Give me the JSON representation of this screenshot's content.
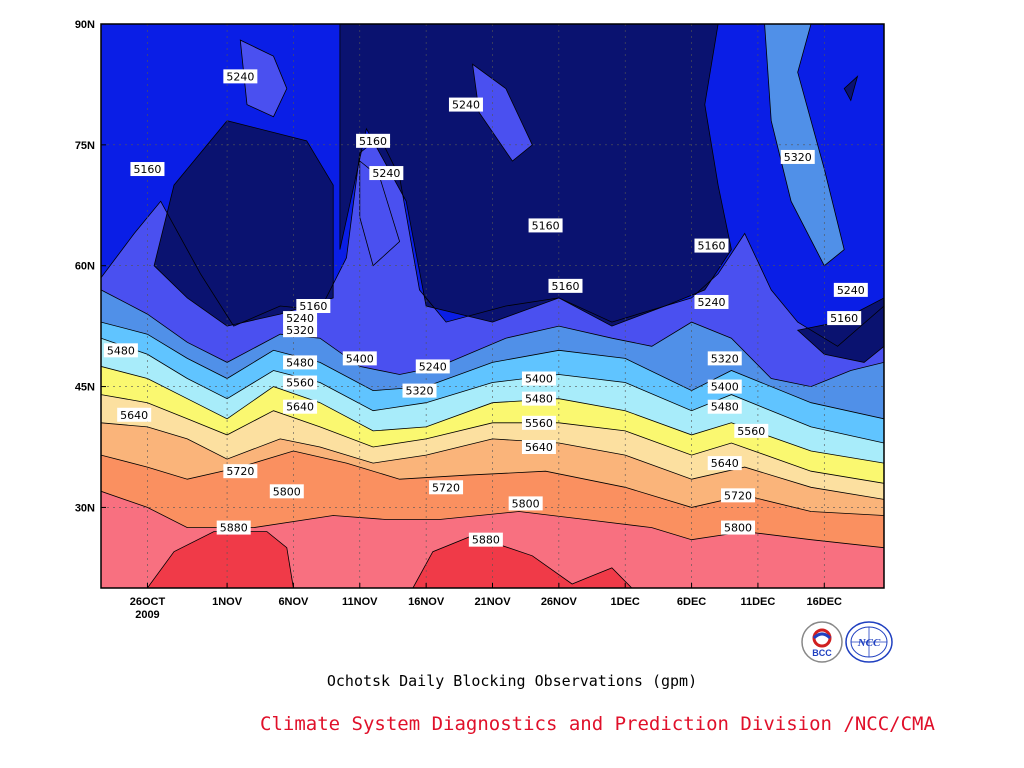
{
  "chart_data": {
    "type": "heatmap",
    "title": "",
    "subtitle": "Ochotsk Daily Blocking Observations (gpm)",
    "x_ticks": [
      {
        "label": "26OCT",
        "sub": "2009",
        "day": 0
      },
      {
        "label": "1NOV",
        "day": 6
      },
      {
        "label": "6NOV",
        "day": 11
      },
      {
        "label": "11NOV",
        "day": 16
      },
      {
        "label": "16NOV",
        "day": 21
      },
      {
        "label": "21NOV",
        "day": 26
      },
      {
        "label": "26NOV",
        "day": 31
      },
      {
        "label": "1DEC",
        "day": 36
      },
      {
        "label": "6DEC",
        "day": 41
      },
      {
        "label": "11DEC",
        "day": 46
      },
      {
        "label": "16DEC",
        "day": 51
      }
    ],
    "y_ticks": [
      {
        "label": "30N",
        "lat": 30
      },
      {
        "label": "45N",
        "lat": 45
      },
      {
        "label": "60N",
        "lat": 60
      },
      {
        "label": "75N",
        "lat": 75
      },
      {
        "label": "90N",
        "lat": 90
      }
    ],
    "xlim": [
      -3.5,
      55.5
    ],
    "ylim": [
      20,
      90
    ],
    "grid": true,
    "levels": [
      5160,
      5240,
      5320,
      5400,
      5480,
      5560,
      5640,
      5720,
      5800,
      5880
    ],
    "colors": [
      "#0a1270",
      "#0a1ee6",
      "#4a50f0",
      "#5090e8",
      "#60c4ff",
      "#a8ecfa",
      "#faf870",
      "#fce0a0",
      "#fab47a",
      "#fa9060",
      "#f86c40",
      "#f87080",
      "#f03a48"
    ],
    "contours": [
      {
        "level": 5880,
        "points": [
          [
            -3.5,
            20.5
          ],
          [
            55.5,
            20.5
          ]
        ]
      },
      {
        "level": 5800,
        "points": [
          [
            -3.5,
            32
          ],
          [
            0,
            30
          ],
          [
            3,
            27.5
          ],
          [
            8,
            27.5
          ],
          [
            14,
            29
          ],
          [
            18,
            28.5
          ],
          [
            22,
            28.5
          ],
          [
            28,
            29.5
          ],
          [
            33,
            28.5
          ],
          [
            38,
            27.5
          ],
          [
            41,
            26
          ],
          [
            45,
            27
          ],
          [
            50,
            26
          ],
          [
            55.5,
            25
          ]
        ]
      },
      {
        "level": 5720,
        "points": [
          [
            -3.5,
            36.5
          ],
          [
            0,
            35
          ],
          [
            3,
            33.5
          ],
          [
            7,
            35
          ],
          [
            11,
            37
          ],
          [
            15,
            35.5
          ],
          [
            19,
            33.5
          ],
          [
            24,
            34
          ],
          [
            30,
            34.5
          ],
          [
            36,
            32.5
          ],
          [
            41,
            30
          ],
          [
            45,
            31.5
          ],
          [
            50,
            29.5
          ],
          [
            55.5,
            29
          ]
        ]
      },
      {
        "level": 5640,
        "points": [
          [
            -3.5,
            40.5
          ],
          [
            0,
            40
          ],
          [
            3,
            38.5
          ],
          [
            6,
            36
          ],
          [
            10,
            38.5
          ],
          [
            13,
            37.5
          ],
          [
            17,
            35.5
          ],
          [
            21,
            36.5
          ],
          [
            26,
            38.5
          ],
          [
            31,
            38
          ],
          [
            36,
            36.5
          ],
          [
            41,
            33.5
          ],
          [
            45,
            35
          ],
          [
            50,
            32.5
          ],
          [
            55.5,
            31
          ]
        ]
      },
      {
        "level": 5560,
        "points": [
          [
            -3.5,
            44
          ],
          [
            0,
            43
          ],
          [
            3,
            41
          ],
          [
            6,
            39
          ],
          [
            9.5,
            42
          ],
          [
            13,
            40
          ],
          [
            17,
            37.5
          ],
          [
            21,
            38.5
          ],
          [
            26,
            40.5
          ],
          [
            31,
            40.5
          ],
          [
            36,
            39.5
          ],
          [
            41,
            36.5
          ],
          [
            44,
            38
          ],
          [
            50,
            34.5
          ],
          [
            55.5,
            33
          ]
        ]
      },
      {
        "level": 5480,
        "points": [
          [
            -3.5,
            47.5
          ],
          [
            0,
            46
          ],
          [
            3,
            43.5
          ],
          [
            6,
            41
          ],
          [
            9.5,
            45
          ],
          [
            13,
            43
          ],
          [
            17,
            39.5
          ],
          [
            21,
            40
          ],
          [
            26,
            43
          ],
          [
            31,
            43.5
          ],
          [
            36,
            42
          ],
          [
            41,
            39
          ],
          [
            44,
            40.5
          ],
          [
            50,
            37
          ],
          [
            55.5,
            35.5
          ]
        ]
      },
      {
        "level": 5400,
        "points": [
          [
            -3.5,
            51
          ],
          [
            0,
            49
          ],
          [
            3,
            46
          ],
          [
            6,
            43.5
          ],
          [
            9.5,
            47
          ],
          [
            13,
            45.5
          ],
          [
            17,
            42
          ],
          [
            21,
            43
          ],
          [
            26,
            45.5
          ],
          [
            31,
            46.5
          ],
          [
            36,
            45.5
          ],
          [
            41,
            42
          ],
          [
            44,
            44
          ],
          [
            50,
            40
          ],
          [
            55.5,
            38
          ]
        ]
      },
      {
        "level": 5320,
        "points": [
          [
            -3.5,
            53
          ],
          [
            0,
            51.5
          ],
          [
            3,
            48.5
          ],
          [
            6,
            46
          ],
          [
            9.5,
            49.5
          ],
          [
            13,
            48
          ],
          [
            17,
            44.5
          ],
          [
            21,
            45
          ],
          [
            26,
            48
          ],
          [
            31,
            49.5
          ],
          [
            36,
            48.5
          ],
          [
            41,
            44.5
          ],
          [
            44,
            47
          ],
          [
            50,
            43
          ],
          [
            55.5,
            41
          ]
        ]
      },
      {
        "level": 5240,
        "points": [
          [
            -3.5,
            57
          ],
          [
            0,
            54
          ],
          [
            3,
            50.5
          ],
          [
            6,
            48
          ],
          [
            10,
            51.5
          ],
          [
            13,
            51
          ],
          [
            16,
            47.5
          ],
          [
            19,
            46.5
          ],
          [
            22,
            47.5
          ],
          [
            27,
            51
          ],
          [
            31,
            52.5
          ],
          [
            35,
            51
          ],
          [
            38,
            50
          ],
          [
            41,
            53
          ],
          [
            44,
            51
          ],
          [
            47,
            46
          ],
          [
            50,
            45
          ],
          [
            53,
            47
          ],
          [
            55.5,
            48
          ]
        ]
      },
      {
        "level": 5160,
        "points": [
          [
            -3.5,
            58.5
          ],
          [
            -1,
            64
          ],
          [
            1,
            68
          ],
          [
            4,
            59
          ],
          [
            6.5,
            52.5
          ],
          [
            10,
            55
          ],
          [
            13,
            54.5
          ],
          [
            15,
            61
          ],
          [
            16,
            74
          ],
          [
            17.5,
            76
          ],
          [
            19,
            71
          ],
          [
            20.5,
            57
          ],
          [
            22.5,
            53
          ],
          [
            27,
            55
          ],
          [
            31,
            56
          ],
          [
            35,
            53
          ],
          [
            39,
            55
          ],
          [
            41,
            56
          ],
          [
            43,
            59
          ],
          [
            45,
            64
          ],
          [
            47,
            57
          ],
          [
            49,
            53
          ],
          [
            52,
            50
          ],
          [
            55.5,
            55
          ]
        ]
      }
    ],
    "labels": [
      {
        "text": "5240",
        "day": 7,
        "lat": 83.5
      },
      {
        "text": "5160",
        "day": 0,
        "lat": 72
      },
      {
        "text": "5240",
        "day": 24,
        "lat": 80
      },
      {
        "text": "5160",
        "day": 17,
        "lat": 75.5
      },
      {
        "text": "5240",
        "day": 18,
        "lat": 71.5
      },
      {
        "text": "5160",
        "day": 30,
        "lat": 65
      },
      {
        "text": "5320",
        "day": 49,
        "lat": 73.5
      },
      {
        "text": "5160",
        "day": 31.5,
        "lat": 57.5
      },
      {
        "text": "5160",
        "day": 42.5,
        "lat": 62.5
      },
      {
        "text": "5240",
        "day": 53,
        "lat": 57
      },
      {
        "text": "5160",
        "day": 52.5,
        "lat": 53.5
      },
      {
        "text": "5160",
        "day": 12.5,
        "lat": 55
      },
      {
        "text": "5240",
        "day": 11.5,
        "lat": 53.5
      },
      {
        "text": "5320",
        "day": 11.5,
        "lat": 52
      },
      {
        "text": "5240",
        "day": 42.5,
        "lat": 55.5
      },
      {
        "text": "5480",
        "day": -2,
        "lat": 49.5
      },
      {
        "text": "5400",
        "day": 16,
        "lat": 48.5
      },
      {
        "text": "5480",
        "day": 11.5,
        "lat": 48
      },
      {
        "text": "5240",
        "day": 21.5,
        "lat": 47.5
      },
      {
        "text": "5320",
        "day": 43.5,
        "lat": 48.5
      },
      {
        "text": "5560",
        "day": 11.5,
        "lat": 45.5
      },
      {
        "text": "5400",
        "day": 29.5,
        "lat": 46
      },
      {
        "text": "5320",
        "day": 20.5,
        "lat": 44.5
      },
      {
        "text": "5400",
        "day": 43.5,
        "lat": 45
      },
      {
        "text": "5480",
        "day": 29.5,
        "lat": 43.5
      },
      {
        "text": "5640",
        "day": 11.5,
        "lat": 42.5
      },
      {
        "text": "5480",
        "day": 43.5,
        "lat": 42.5
      },
      {
        "text": "5640",
        "day": -1,
        "lat": 41.5
      },
      {
        "text": "5560",
        "day": 29.5,
        "lat": 40.5
      },
      {
        "text": "5560",
        "day": 45.5,
        "lat": 39.5
      },
      {
        "text": "5640",
        "day": 29.5,
        "lat": 37.5
      },
      {
        "text": "5720",
        "day": 7,
        "lat": 34.5
      },
      {
        "text": "5640",
        "day": 43.5,
        "lat": 35.5
      },
      {
        "text": "5720",
        "day": 22.5,
        "lat": 32.5
      },
      {
        "text": "5800",
        "day": 10.5,
        "lat": 32
      },
      {
        "text": "5720",
        "day": 44.5,
        "lat": 31.5
      },
      {
        "text": "5800",
        "day": 28.5,
        "lat": 30.5
      },
      {
        "text": "5800",
        "day": 44.5,
        "lat": 27.5
      },
      {
        "text": "5880",
        "day": 6.5,
        "lat": 27.5
      },
      {
        "text": "5880",
        "day": 25.5,
        "lat": 26
      }
    ],
    "islands": [
      {
        "level": "5880",
        "points": [
          [
            0,
            20
          ],
          [
            2,
            24.5
          ],
          [
            5,
            27
          ],
          [
            9,
            27
          ],
          [
            10.5,
            25
          ],
          [
            11,
            20
          ]
        ]
      },
      {
        "level": "5880",
        "points": [
          [
            20,
            20
          ],
          [
            21.5,
            24.5
          ],
          [
            24.5,
            26.5
          ],
          [
            29,
            24
          ],
          [
            32,
            20.5
          ],
          [
            33.5,
            21.5
          ],
          [
            35,
            22.5
          ],
          [
            36.5,
            20
          ]
        ]
      },
      {
        "level": "5160",
        "points": [
          [
            1,
            20
          ],
          [
            1,
            20
          ]
        ]
      }
    ],
    "blobs_low": [
      {
        "fill": 0,
        "points": [
          [
            0.5,
            60
          ],
          [
            2,
            70
          ],
          [
            6,
            78
          ],
          [
            12,
            75.5
          ],
          [
            14,
            70
          ],
          [
            14,
            56
          ],
          [
            10,
            54
          ],
          [
            6,
            52.5
          ],
          [
            3,
            56
          ]
        ]
      },
      {
        "fill": 0,
        "points": [
          [
            14.5,
            90
          ],
          [
            14.5,
            62
          ],
          [
            16.5,
            77
          ],
          [
            19.5,
            68
          ],
          [
            21,
            55
          ],
          [
            26,
            53
          ],
          [
            31,
            56
          ],
          [
            35,
            52.5
          ],
          [
            39,
            55
          ],
          [
            42,
            57
          ],
          [
            44,
            62
          ],
          [
            43,
            70
          ],
          [
            42,
            80
          ],
          [
            43,
            90
          ]
        ]
      },
      {
        "fill": 0,
        "points": [
          [
            49,
            52
          ],
          [
            51,
            49
          ],
          [
            54,
            48
          ],
          [
            55.5,
            50
          ],
          [
            55.5,
            56
          ],
          [
            52,
            53
          ]
        ]
      },
      {
        "fill": 0,
        "points": [
          [
            52.5,
            82
          ],
          [
            53.5,
            83.5
          ],
          [
            53,
            80.5
          ]
        ]
      }
    ],
    "blobs_mid": [
      {
        "fill": 2,
        "points": [
          [
            7,
            88
          ],
          [
            7.5,
            80
          ],
          [
            9.5,
            78.5
          ],
          [
            10.5,
            82
          ],
          [
            9.5,
            86
          ]
        ]
      },
      {
        "fill": 2,
        "points": [
          [
            24.5,
            85
          ],
          [
            25,
            79
          ],
          [
            27.5,
            73
          ],
          [
            29,
            75
          ],
          [
            27,
            82
          ]
        ]
      },
      {
        "fill": 2,
        "points": [
          [
            16,
            73
          ],
          [
            17.5,
            71
          ],
          [
            19,
            63
          ],
          [
            17,
            60
          ],
          [
            16,
            66
          ]
        ]
      },
      {
        "fill": 3,
        "points": [
          [
            46.5,
            90
          ],
          [
            47,
            78
          ],
          [
            48.5,
            68
          ],
          [
            51,
            60
          ],
          [
            52.5,
            62
          ],
          [
            51,
            72
          ],
          [
            49,
            84
          ],
          [
            50,
            90
          ]
        ]
      }
    ]
  },
  "credit": "Climate System Diagnostics and Prediction Division /NCC/CMA",
  "logos": [
    {
      "name": "BCC",
      "text": "BCC"
    },
    {
      "name": "NCC",
      "text": "NCC"
    }
  ]
}
